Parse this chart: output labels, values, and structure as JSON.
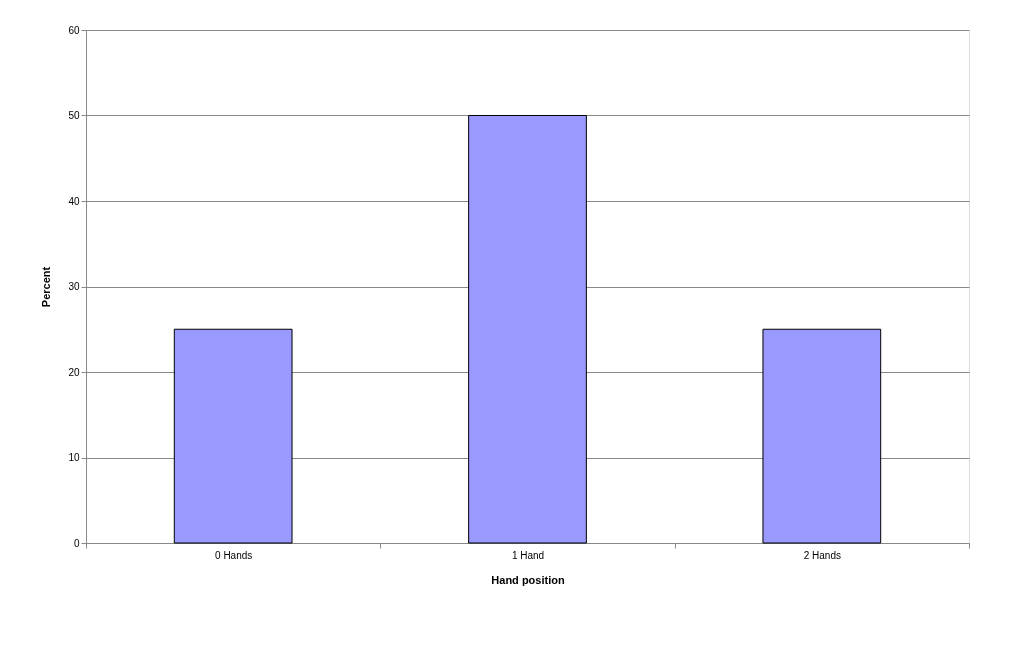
{
  "chart_data": {
    "type": "bar",
    "xlabel": "Hand position",
    "ylabel": "Percent",
    "categories": [
      "0 Hands",
      "1 Hand",
      "2 Hands"
    ],
    "values": [
      25,
      50,
      25
    ],
    "color": "#9999ff",
    "ylim": [
      0,
      60
    ],
    "yticks": [
      0,
      10,
      20,
      30,
      40,
      50,
      60
    ],
    "grid": "y"
  }
}
